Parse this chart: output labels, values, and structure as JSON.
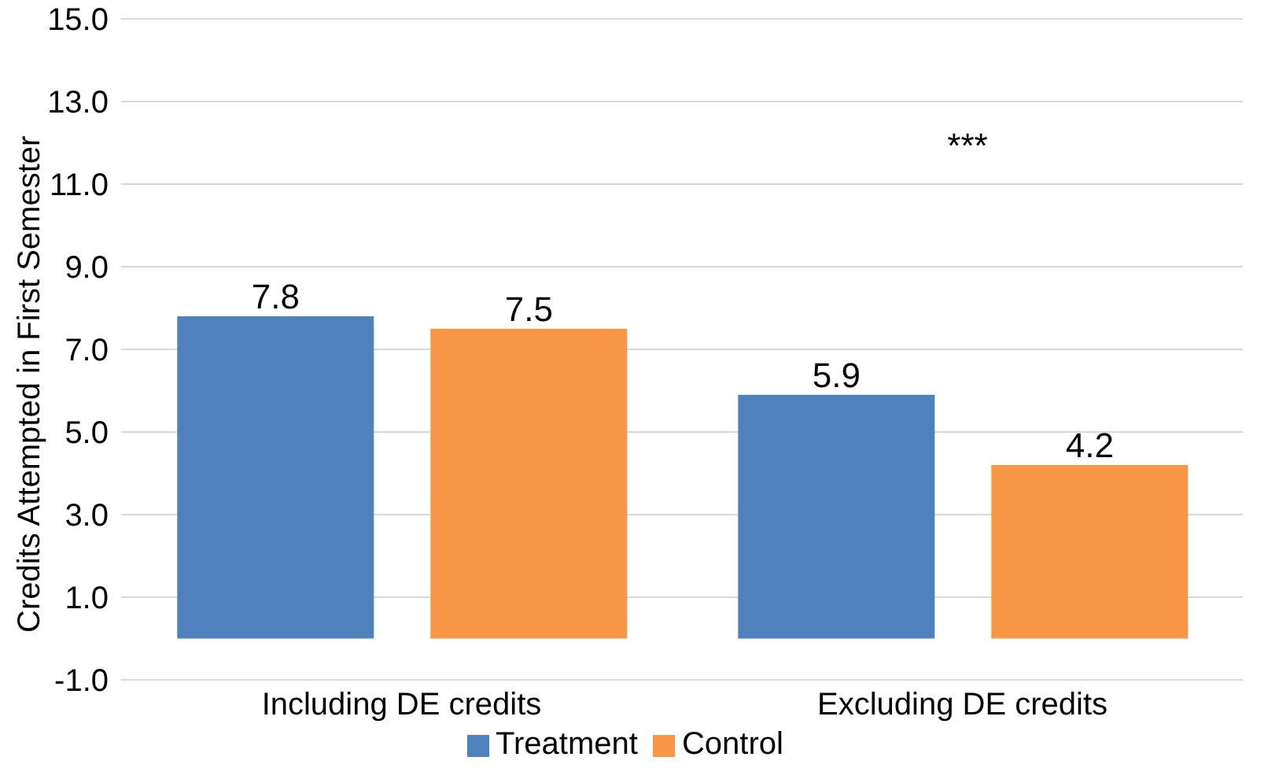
{
  "chart_data": {
    "type": "bar",
    "ylabel": "Credits Attempted in First Semester",
    "categories": [
      "Including DE credits",
      "Excluding DE credits"
    ],
    "series": [
      {
        "name": "Treatment",
        "color": "#4f81bd",
        "values": [
          7.8,
          5.9
        ]
      },
      {
        "name": "Control",
        "color": "#f79646",
        "values": [
          7.5,
          4.2
        ]
      }
    ],
    "ylim": [
      -1,
      15
    ],
    "yticks": [
      {
        "value": -1,
        "label": "-1.0"
      },
      {
        "value": 1,
        "label": "1.0"
      },
      {
        "value": 3,
        "label": "3.0"
      },
      {
        "value": 5,
        "label": "5.0"
      },
      {
        "value": 7,
        "label": "7.0"
      },
      {
        "value": 9,
        "label": "9.0"
      },
      {
        "value": 11,
        "label": "11.0"
      },
      {
        "value": 13,
        "label": "13.0"
      },
      {
        "value": 15,
        "label": "15.0"
      }
    ],
    "grid": "y",
    "legend": "bottom",
    "data_labels": true,
    "annotations": [
      "***"
    ]
  }
}
